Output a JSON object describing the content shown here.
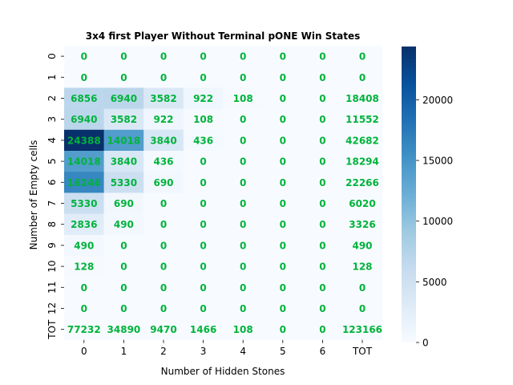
{
  "chart_data": {
    "type": "heatmap",
    "title": "3x4 first Player Without Terminal pONE Win States",
    "xlabel": "Number of Hidden Stones",
    "ylabel": "Number of Empty cells",
    "x_categories": [
      "0",
      "1",
      "2",
      "3",
      "4",
      "5",
      "6",
      "TOT"
    ],
    "y_categories": [
      "0",
      "1",
      "2",
      "3",
      "4",
      "5",
      "6",
      "7",
      "8",
      "9",
      "10",
      "11",
      "12",
      "TOT"
    ],
    "values": [
      [
        0,
        0,
        0,
        0,
        0,
        0,
        0,
        0
      ],
      [
        0,
        0,
        0,
        0,
        0,
        0,
        0,
        0
      ],
      [
        6856,
        6940,
        3582,
        922,
        108,
        0,
        0,
        18408
      ],
      [
        6940,
        3582,
        922,
        108,
        0,
        0,
        0,
        11552
      ],
      [
        24388,
        14018,
        3840,
        436,
        0,
        0,
        0,
        42682
      ],
      [
        14018,
        3840,
        436,
        0,
        0,
        0,
        0,
        18294
      ],
      [
        16246,
        5330,
        690,
        0,
        0,
        0,
        0,
        22266
      ],
      [
        5330,
        690,
        0,
        0,
        0,
        0,
        0,
        6020
      ],
      [
        2836,
        490,
        0,
        0,
        0,
        0,
        0,
        3326
      ],
      [
        490,
        0,
        0,
        0,
        0,
        0,
        0,
        490
      ],
      [
        128,
        0,
        0,
        0,
        0,
        0,
        0,
        128
      ],
      [
        0,
        0,
        0,
        0,
        0,
        0,
        0,
        0
      ],
      [
        0,
        0,
        0,
        0,
        0,
        0,
        0,
        0
      ],
      [
        77232,
        34890,
        9470,
        1466,
        108,
        0,
        0,
        123166
      ]
    ],
    "color_scale": {
      "vmin": 0,
      "vmax": 24388,
      "colormap": "Blues",
      "ticks": [
        0,
        5000,
        10000,
        15000,
        20000
      ]
    },
    "colors": {
      "annotation": "#00b33c",
      "low": "#f7fbff",
      "high": "#08306b"
    },
    "mask_masked_cells": "values above vmax are shown as background (e.g. TOT row/column)"
  }
}
